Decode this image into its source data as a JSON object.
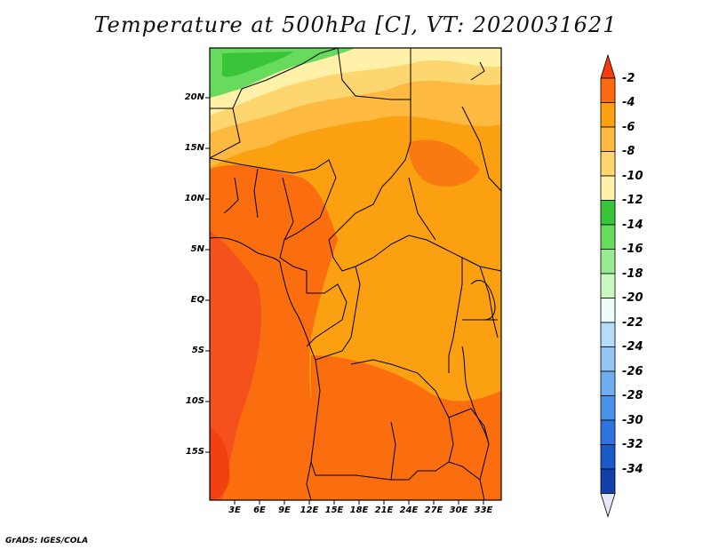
{
  "title": "Temperature at 500hPa [C], VT: 2020031621",
  "credit": "GrADS: IGES/COLA",
  "lat_labels": [
    "20N",
    "15N",
    "10N",
    "5N",
    "EQ",
    "5S",
    "10S",
    "15S"
  ],
  "lon_labels": [
    "3E",
    "6E",
    "9E",
    "12E",
    "15E",
    "18E",
    "21E",
    "24E",
    "27E",
    "30E",
    "33E"
  ],
  "colorbar": {
    "labels": [
      "-2",
      "-4",
      "-6",
      "-8",
      "-10",
      "-12",
      "-14",
      "-16",
      "-18",
      "-20",
      "-22",
      "-24",
      "-26",
      "-28",
      "-30",
      "-32",
      "-34"
    ],
    "colors": [
      "#f53c0a",
      "#fa6a0f",
      "#fba010",
      "#fdb940",
      "#fdd670",
      "#fff1a8",
      "#39c43a",
      "#66db5e",
      "#96ec8f",
      "#c9f9c1",
      "#eef9f9",
      "#b5dcf8",
      "#95c6f3",
      "#6eaef0",
      "#4b92ea",
      "#2f74de",
      "#195ac8",
      "#1040a8",
      "#0a1668"
    ]
  },
  "map_colors": {
    "c2": "#f4511c",
    "c4": "#fa6e10",
    "c6": "#fba010",
    "c8": "#fdb940",
    "c10": "#fdd670",
    "c12": "#fff1a8",
    "c14": "#39c43a",
    "c16": "#66db5e",
    "c18": "#96ec8f"
  }
}
